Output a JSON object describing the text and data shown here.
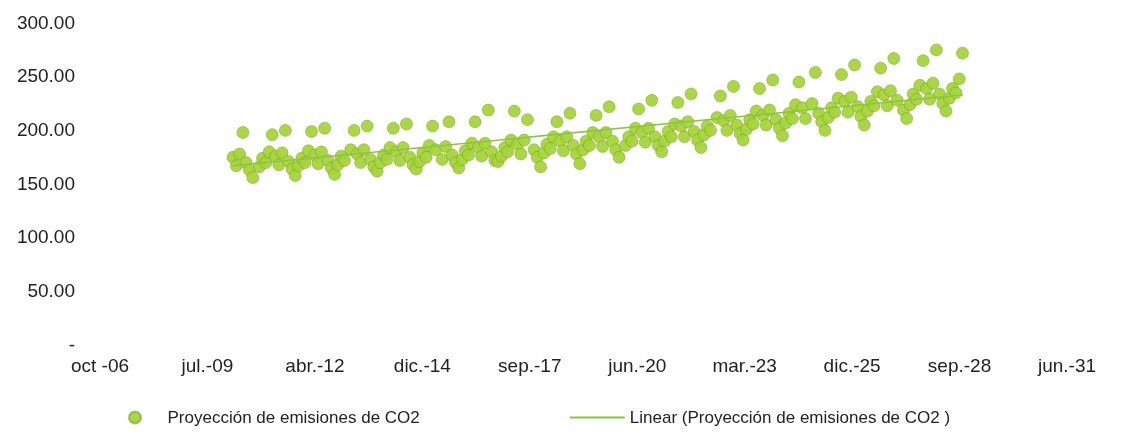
{
  "chart_data": {
    "type": "scatter",
    "xlim": [
      "2006-10-10",
      "2031-06-01"
    ],
    "xticks": [
      {
        "value": "2006-10-10",
        "label": "oct -06"
      },
      {
        "value": "2009-07-06",
        "label": "jul.-09"
      },
      {
        "value": "2012-04-01",
        "label": "abr.-12"
      },
      {
        "value": "2014-12-27",
        "label": "dic.-14"
      },
      {
        "value": "2017-09-22",
        "label": "sep.-17"
      },
      {
        "value": "2020-06-18",
        "label": "jun.-20"
      },
      {
        "value": "2023-03-15",
        "label": "mar.-23"
      },
      {
        "value": "2025-12-09",
        "label": "dic.-25"
      },
      {
        "value": "2028-09-04",
        "label": "sep.-28"
      },
      {
        "value": "2031-06-01",
        "label": "jun.-31"
      }
    ],
    "ylim": [
      0,
      300
    ],
    "yticks": [
      {
        "value": 0,
        "label": "-"
      },
      {
        "value": 50,
        "label": "50.00"
      },
      {
        "value": 100,
        "label": "100.00"
      },
      {
        "value": 150,
        "label": "150.00"
      },
      {
        "value": 200,
        "label": "200.00"
      },
      {
        "value": 250,
        "label": "250.00"
      },
      {
        "value": 300,
        "label": "300.00"
      }
    ],
    "grid": false,
    "legend": "bottom",
    "marker": "circle",
    "series": [
      {
        "name": "Proyección de emisiones de CO2",
        "color": "#a6d43c",
        "x": [
          "2010-03",
          "2010-04",
          "2010-05",
          "2010-06",
          "2010-07",
          "2010-08",
          "2010-09",
          "2010-11",
          "2010-12",
          "2011-01",
          "2011-02",
          "2011-03",
          "2011-04",
          "2011-05",
          "2011-06",
          "2011-07",
          "2011-08",
          "2011-09",
          "2011-10",
          "2011-11",
          "2011-12",
          "2012-01",
          "2012-02",
          "2012-03",
          "2012-04",
          "2012-05",
          "2012-06",
          "2012-07",
          "2012-08",
          "2012-09",
          "2012-10",
          "2012-11",
          "2012-12",
          "2013-01",
          "2013-03",
          "2013-04",
          "2013-05",
          "2013-06",
          "2013-07",
          "2013-08",
          "2013-09",
          "2013-10",
          "2013-11",
          "2013-12",
          "2014-01",
          "2014-02",
          "2014-03",
          "2014-04",
          "2014-05",
          "2014-06",
          "2014-07",
          "2014-08",
          "2014-09",
          "2014-10",
          "2014-11",
          "2014-12",
          "2015-01",
          "2015-02",
          "2015-03",
          "2015-04",
          "2015-05",
          "2015-07",
          "2015-08",
          "2015-09",
          "2015-10",
          "2015-11",
          "2015-12",
          "2016-01",
          "2016-02",
          "2016-03",
          "2016-04",
          "2016-05",
          "2016-06",
          "2016-07",
          "2016-08",
          "2016-09",
          "2016-10",
          "2016-11",
          "2016-12",
          "2017-01",
          "2017-02",
          "2017-03",
          "2017-04",
          "2017-05",
          "2017-06",
          "2017-07",
          "2017-08",
          "2017-09",
          "2017-11",
          "2017-12",
          "2018-01",
          "2018-02",
          "2018-03",
          "2018-04",
          "2018-05",
          "2018-06",
          "2018-07",
          "2018-08",
          "2018-09",
          "2018-10",
          "2018-11",
          "2018-12",
          "2019-01",
          "2019-02",
          "2019-03",
          "2019-04",
          "2019-05",
          "2019-06",
          "2019-07",
          "2019-08",
          "2019-09",
          "2019-10",
          "2019-11",
          "2019-12",
          "2020-01",
          "2020-03",
          "2020-04",
          "2020-05",
          "2020-06",
          "2020-07",
          "2020-08",
          "2020-09",
          "2020-10",
          "2020-11",
          "2020-12",
          "2021-01",
          "2021-02",
          "2021-03",
          "2021-04",
          "2021-05",
          "2021-06",
          "2021-07",
          "2021-08",
          "2021-09",
          "2021-10",
          "2021-11",
          "2021-12",
          "2022-01",
          "2022-02",
          "2022-03",
          "2022-04",
          "2022-05",
          "2022-07",
          "2022-08",
          "2022-09",
          "2022-10",
          "2022-11",
          "2022-12",
          "2023-01",
          "2023-02",
          "2023-03",
          "2023-04",
          "2023-05",
          "2023-06",
          "2023-07",
          "2023-08",
          "2023-09",
          "2023-10",
          "2023-11",
          "2023-12",
          "2024-01",
          "2024-02",
          "2024-03",
          "2024-04",
          "2024-05",
          "2024-06",
          "2024-07",
          "2024-08",
          "2024-09",
          "2024-10",
          "2024-12",
          "2025-01",
          "2025-02",
          "2025-03",
          "2025-04",
          "2025-05",
          "2025-06",
          "2025-07",
          "2025-08",
          "2025-09",
          "2025-10",
          "2025-11",
          "2025-12",
          "2026-01",
          "2026-02",
          "2026-03",
          "2026-04",
          "2026-05",
          "2026-06",
          "2026-07",
          "2026-08",
          "2026-09",
          "2026-10",
          "2026-11",
          "2026-12",
          "2027-01",
          "2027-02",
          "2027-04",
          "2027-05",
          "2027-06",
          "2027-07",
          "2027-08",
          "2027-09",
          "2027-10",
          "2027-11",
          "2027-12",
          "2028-01",
          "2028-02",
          "2028-03",
          "2028-04",
          "2028-05",
          "2028-06",
          "2028-07",
          "2028-08",
          "2028-09",
          "2028-10"
        ],
        "values": [
          174,
          166,
          177,
          197,
          169,
          162,
          155,
          165,
          173,
          169,
          179,
          195,
          175,
          167,
          178,
          199,
          170,
          163,
          157,
          166,
          173,
          169,
          180,
          198,
          176,
          168,
          179,
          201,
          171,
          164,
          158,
          167,
          175,
          171,
          181,
          199,
          177,
          169,
          181,
          203,
          172,
          165,
          161,
          169,
          176,
          172,
          183,
          201,
          179,
          171,
          183,
          205,
          174,
          167,
          163,
          170,
          178,
          174,
          185,
          203,
          181,
          172,
          184,
          207,
          176,
          169,
          164,
          172,
          180,
          176,
          187,
          207,
          183,
          175,
          187,
          218,
          179,
          171,
          170,
          175,
          183,
          179,
          190,
          217,
          186,
          177,
          190,
          209,
          181,
          174,
          165,
          178,
          186,
          182,
          193,
          207,
          189,
          180,
          193,
          215,
          185,
          177,
          168,
          181,
          189,
          185,
          197,
          213,
          193,
          184,
          197,
          221,
          189,
          181,
          174,
          185,
          193,
          189,
          201,
          219,
          197,
          188,
          201,
          227,
          193,
          185,
          179,
          189,
          198,
          193,
          205,
          225,
          203,
          193,
          207,
          233,
          198,
          190,
          183,
          195,
          203,
          199,
          211,
          231,
          208,
          199,
          213,
          240,
          204,
          196,
          190,
          200,
          209,
          205,
          217,
          238,
          213,
          204,
          218,
          246,
          209,
          201,
          194,
          206,
          215,
          210,
          223,
          244,
          220,
          210,
          224,
          253,
          215,
          207,
          199,
          211,
          220,
          216,
          229,
          251,
          226,
          216,
          230,
          260,
          221,
          212,
          204,
          217,
          226,
          222,
          235,
          257,
          232,
          222,
          236,
          266,
          227,
          218,
          210,
          223,
          233,
          228,
          241,
          264,
          238,
          228,
          243,
          274,
          233,
          224,
          217,
          229,
          238,
          234,
          247,
          271
        ]
      },
      {
        "name": "Linear (Proyección de emisiones de CO2 )",
        "type": "line",
        "color": "#8cc63f",
        "marker": "none",
        "line_style": "solid",
        "x": [
          "2010-03",
          "2028-10"
        ],
        "values": [
          166,
          232
        ]
      }
    ]
  }
}
